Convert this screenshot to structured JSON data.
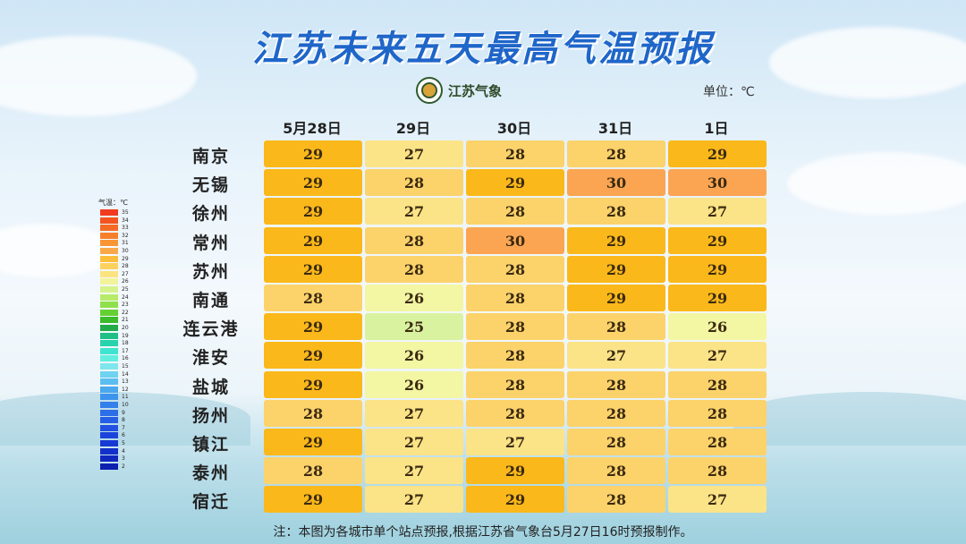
{
  "title": "江苏未来五天最高气温预报",
  "logo_text": "江苏气象",
  "unit": "单位：℃",
  "days": [
    "5月28日",
    "29日",
    "30日",
    "31日",
    "1日"
  ],
  "rows": [
    {
      "city": "南京",
      "temps": [
        29,
        27,
        28,
        28,
        29
      ]
    },
    {
      "city": "无锡",
      "temps": [
        29,
        28,
        29,
        30,
        30
      ]
    },
    {
      "city": "徐州",
      "temps": [
        29,
        27,
        28,
        28,
        27
      ]
    },
    {
      "city": "常州",
      "temps": [
        29,
        28,
        30,
        29,
        29
      ]
    },
    {
      "city": "苏州",
      "temps": [
        29,
        28,
        28,
        29,
        29
      ]
    },
    {
      "city": "南通",
      "temps": [
        28,
        26,
        28,
        29,
        29
      ]
    },
    {
      "city": "连云港",
      "temps": [
        29,
        25,
        28,
        28,
        26
      ]
    },
    {
      "city": "淮安",
      "temps": [
        29,
        26,
        28,
        27,
        27
      ]
    },
    {
      "city": "盐城",
      "temps": [
        29,
        26,
        28,
        28,
        28
      ]
    },
    {
      "city": "扬州",
      "temps": [
        28,
        27,
        28,
        28,
        28
      ]
    },
    {
      "city": "镇江",
      "temps": [
        29,
        27,
        27,
        28,
        28
      ]
    },
    {
      "city": "泰州",
      "temps": [
        28,
        27,
        29,
        28,
        28
      ]
    },
    {
      "city": "宿迁",
      "temps": [
        29,
        27,
        29,
        28,
        27
      ]
    }
  ],
  "temp_colors": {
    "25": "#d9f2a0",
    "26": "#f3f6a2",
    "27": "#fbe387",
    "28": "#fcd26b",
    "29": "#fbb81a",
    "30": "#fba553"
  },
  "legend": {
    "title": "气温：℃",
    "items": [
      {
        "label": "35",
        "color": "#f23a1e"
      },
      {
        "label": "34",
        "color": "#f4541f"
      },
      {
        "label": "33",
        "color": "#f56a24"
      },
      {
        "label": "32",
        "color": "#f67f2a"
      },
      {
        "label": "31",
        "color": "#f89636"
      },
      {
        "label": "30",
        "color": "#faa94a"
      },
      {
        "label": "29",
        "color": "#fbbd3a"
      },
      {
        "label": "28",
        "color": "#fcd15e"
      },
      {
        "label": "27",
        "color": "#fbe380"
      },
      {
        "label": "26",
        "color": "#f2f49a"
      },
      {
        "label": "25",
        "color": "#d6f28c"
      },
      {
        "label": "24",
        "color": "#b6ec6a"
      },
      {
        "label": "23",
        "color": "#8fe04a"
      },
      {
        "label": "22",
        "color": "#63d033"
      },
      {
        "label": "21",
        "color": "#3cbc2a"
      },
      {
        "label": "20",
        "color": "#22ab4a"
      },
      {
        "label": "19",
        "color": "#1fbf86"
      },
      {
        "label": "18",
        "color": "#26d3ad"
      },
      {
        "label": "17",
        "color": "#3ee4cf"
      },
      {
        "label": "16",
        "color": "#63eee0"
      },
      {
        "label": "15",
        "color": "#7fe6ec"
      },
      {
        "label": "14",
        "color": "#6fd2f0"
      },
      {
        "label": "13",
        "color": "#5cbdf0"
      },
      {
        "label": "12",
        "color": "#4aa8ee"
      },
      {
        "label": "11",
        "color": "#3d94ec"
      },
      {
        "label": "10",
        "color": "#3380ea"
      },
      {
        "label": "9",
        "color": "#2c6ee8"
      },
      {
        "label": "8",
        "color": "#265ee6"
      },
      {
        "label": "7",
        "color": "#2150e2"
      },
      {
        "label": "6",
        "color": "#1c44dc"
      },
      {
        "label": "5",
        "color": "#173ad4"
      },
      {
        "label": "4",
        "color": "#1330ca"
      },
      {
        "label": "3",
        "color": "#1028be"
      },
      {
        "label": "2",
        "color": "#0d20b0"
      }
    ]
  },
  "note": "注：本图为各城市单个站点预报,根据江苏省气象台5月27日16时预报制作。"
}
